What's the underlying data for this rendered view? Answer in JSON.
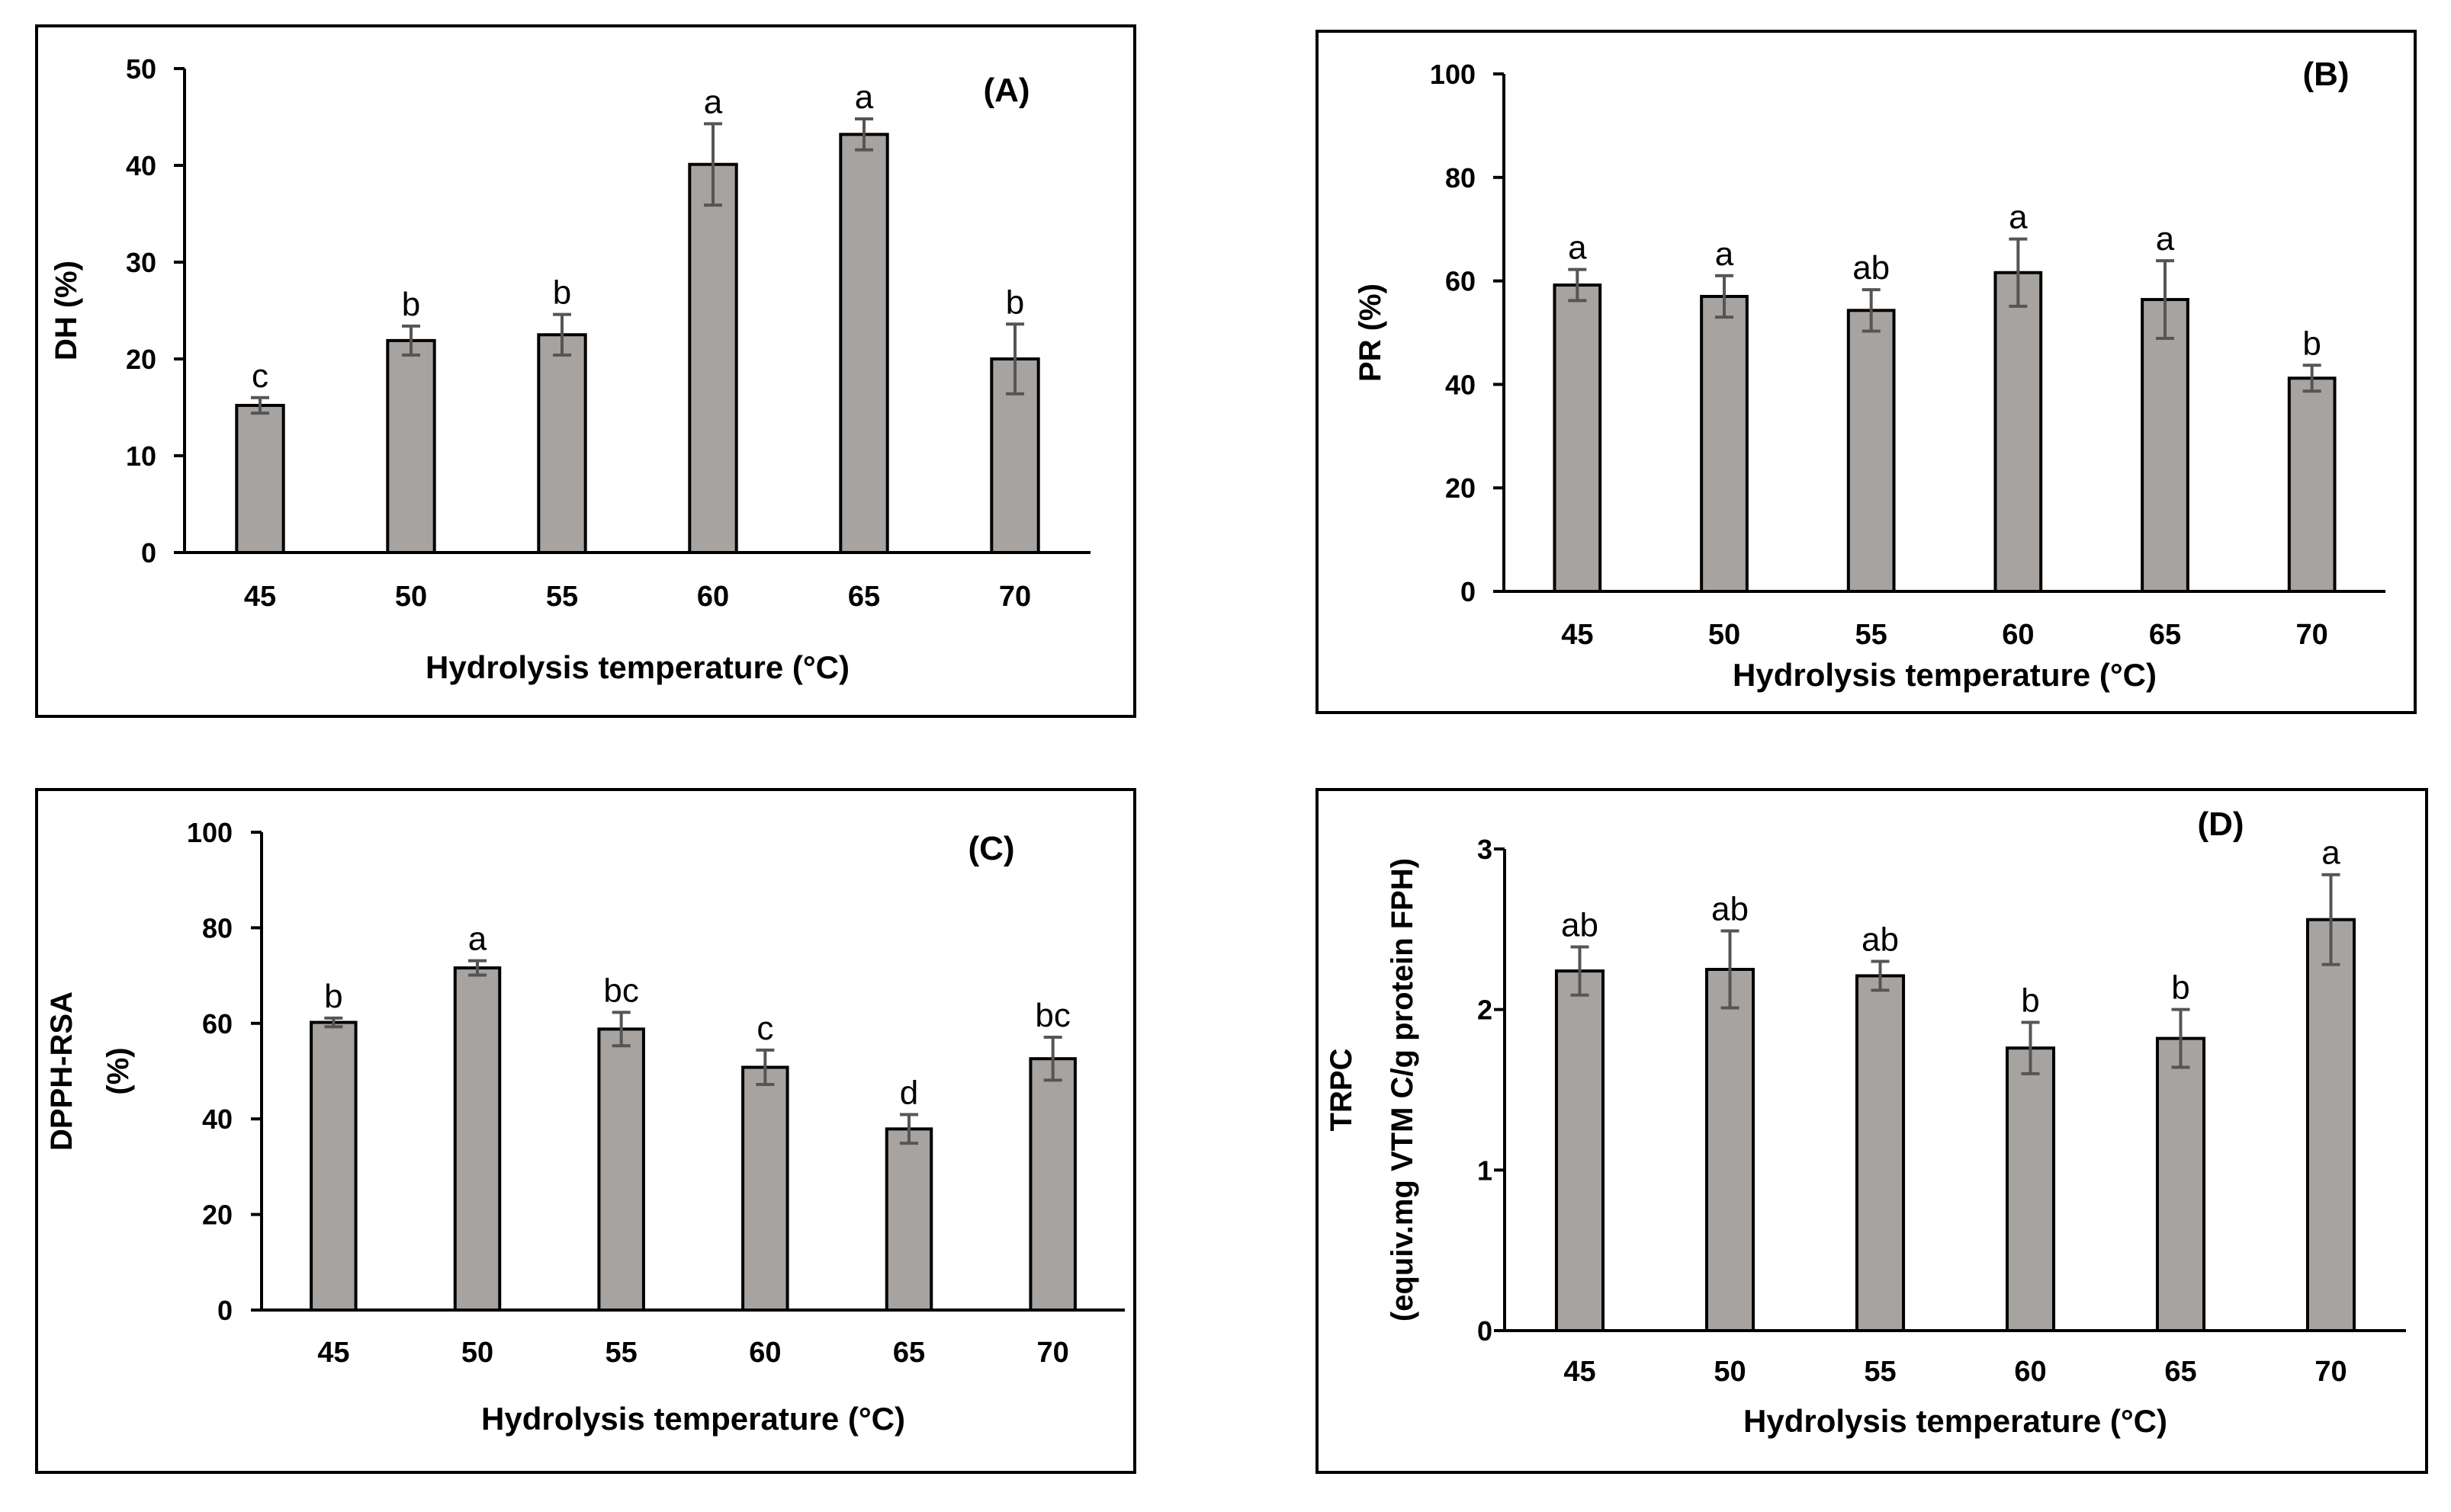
{
  "chart_data": [
    {
      "type": "bar",
      "panel_label": "(A)",
      "ylabel_lines": [
        "DH (%)"
      ],
      "xlabel": "Hydrolysis temperature (°C)",
      "categories": [
        "45",
        "50",
        "55",
        "60",
        "65",
        "70"
      ],
      "values": [
        15.2,
        21.9,
        22.5,
        40.1,
        43.2,
        20.0
      ],
      "errors": [
        0.8,
        1.5,
        2.1,
        4.2,
        1.6,
        3.6
      ],
      "significance": [
        "c",
        "b",
        "b",
        "a",
        "a",
        "b"
      ],
      "ylim": [
        0,
        50
      ],
      "yticks": [
        0,
        10,
        20,
        30,
        40,
        50
      ]
    },
    {
      "type": "bar",
      "panel_label": "(B)",
      "ylabel_lines": [
        "PR (%)"
      ],
      "xlabel": "Hydrolysis temperature (°C)",
      "categories": [
        "45",
        "50",
        "55",
        "60",
        "65",
        "70"
      ],
      "values": [
        59.2,
        57.0,
        54.3,
        61.6,
        56.4,
        41.2
      ],
      "errors": [
        3.0,
        4.0,
        4.0,
        6.5,
        7.5,
        2.5
      ],
      "significance": [
        "a",
        "a",
        "ab",
        "a",
        "a",
        "b"
      ],
      "ylim": [
        0,
        100
      ],
      "yticks": [
        0,
        20,
        40,
        60,
        80,
        100
      ]
    },
    {
      "type": "bar",
      "panel_label": "(C)",
      "ylabel_lines": [
        "DPPH-RSA",
        "(%)"
      ],
      "xlabel": "Hydrolysis temperature (°C)",
      "categories": [
        "45",
        "50",
        "55",
        "60",
        "65",
        "70"
      ],
      "values": [
        60.2,
        71.6,
        58.8,
        50.8,
        37.9,
        52.6
      ],
      "errors": [
        0.9,
        1.5,
        3.5,
        3.6,
        3.0,
        4.5
      ],
      "significance": [
        "b",
        "a",
        "bc",
        "c",
        "d",
        "bc"
      ],
      "ylim": [
        0,
        100
      ],
      "yticks": [
        0,
        20,
        40,
        60,
        80,
        100
      ]
    },
    {
      "type": "bar",
      "panel_label": "(D)",
      "ylabel_lines": [
        "TRPC",
        "(equiv.mg VTM C/g protein FPH)"
      ],
      "xlabel": "Hydrolysis temperature (°C)",
      "categories": [
        "45",
        "50",
        "55",
        "60",
        "65",
        "70"
      ],
      "values": [
        2.24,
        2.25,
        2.21,
        1.76,
        1.82,
        2.56
      ],
      "errors": [
        0.15,
        0.24,
        0.09,
        0.16,
        0.18,
        0.28
      ],
      "significance": [
        "ab",
        "ab",
        "ab",
        "b",
        "b",
        "a"
      ],
      "ylim": [
        0,
        3
      ],
      "yticks": [
        0,
        1,
        2,
        3
      ]
    }
  ],
  "colors": {
    "bar_fill": "#a6a3a0",
    "bar_stroke": "#000000",
    "error_bar": "#555555",
    "frame": "#000000",
    "background": "#ffffff"
  }
}
